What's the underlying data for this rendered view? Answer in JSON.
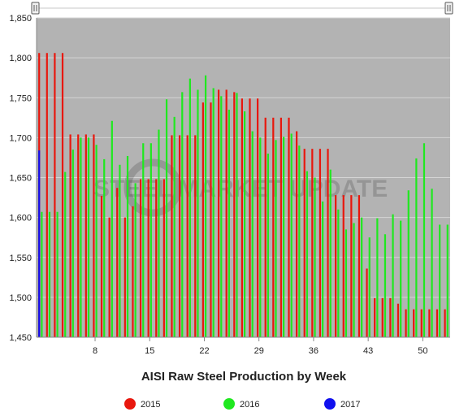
{
  "watermark": "STEEL MARKET UPDATE",
  "chart_data": {
    "type": "bar",
    "title": "AISI Raw Steel Production by Week",
    "xlabel": "",
    "ylabel": "",
    "ylim": [
      1450,
      1850
    ],
    "xlim": [
      1,
      53
    ],
    "x_ticks": [
      8,
      15,
      22,
      29,
      36,
      43,
      50
    ],
    "y_ticks": [
      1450,
      1500,
      1550,
      1600,
      1650,
      1700,
      1750,
      1800,
      1850
    ],
    "y_tick_labels": [
      "1,450",
      "1,500",
      "1,550",
      "1,600",
      "1,650",
      "1,700",
      "1,750",
      "1,800",
      "1,850"
    ],
    "grid": true,
    "plot_background": "#b3b3b3",
    "legend_position": "bottom",
    "weeks": [
      1,
      2,
      3,
      4,
      5,
      6,
      7,
      8,
      9,
      10,
      11,
      12,
      13,
      14,
      15,
      16,
      17,
      18,
      19,
      20,
      21,
      22,
      23,
      24,
      25,
      26,
      27,
      28,
      29,
      30,
      31,
      32,
      33,
      34,
      35,
      36,
      37,
      38,
      39,
      40,
      41,
      42,
      43,
      44,
      45,
      46,
      47,
      48,
      49,
      50,
      51,
      52,
      53
    ],
    "series": [
      {
        "name": "2015",
        "color": "#e8170d",
        "values": [
          1806,
          1806,
          1806,
          1806,
          1704,
          1704,
          1704,
          1704,
          1627,
          1600,
          1637,
          1600,
          1614,
          1648,
          1648,
          1648,
          1648,
          1703,
          1703,
          1703,
          1703,
          1744,
          1744,
          1760,
          1760,
          1757,
          1749,
          1749,
          1749,
          1725,
          1725,
          1725,
          1725,
          1708,
          1686,
          1686,
          1686,
          1686,
          1628,
          1628,
          1628,
          1628,
          1536,
          1499,
          1499,
          1499,
          1492,
          1485,
          1485,
          1485,
          1485,
          1485,
          1485
        ]
      },
      {
        "name": "2016",
        "color": "#1fe81f",
        "values": [
          1607,
          1607,
          1607,
          1657,
          1685,
          1700,
          1700,
          1691,
          1673,
          1721,
          1666,
          1677,
          1643,
          1693,
          1693,
          1710,
          1748,
          1726,
          1757,
          1774,
          1760,
          1778,
          1762,
          1752,
          1735,
          1756,
          1733,
          1708,
          1700,
          1680,
          1697,
          1701,
          1705,
          1690,
          1658,
          1650,
          1620,
          1660,
          1610,
          1585,
          1593,
          1600,
          1575,
          1599,
          1579,
          1604,
          1596,
          1634,
          1674,
          1693,
          1636,
          1591,
          1591
        ]
      },
      {
        "name": "2017",
        "color": "#1010ee",
        "values": [
          1684,
          null,
          null,
          null,
          null,
          null,
          null,
          null,
          null,
          null,
          null,
          null,
          null,
          null,
          null,
          null,
          null,
          null,
          null,
          null,
          null,
          null,
          null,
          null,
          null,
          null,
          null,
          null,
          null,
          null,
          null,
          null,
          null,
          null,
          null,
          null,
          null,
          null,
          null,
          null,
          null,
          null,
          null,
          null,
          null,
          null,
          null,
          null,
          null,
          null,
          null,
          null,
          null
        ]
      }
    ]
  }
}
